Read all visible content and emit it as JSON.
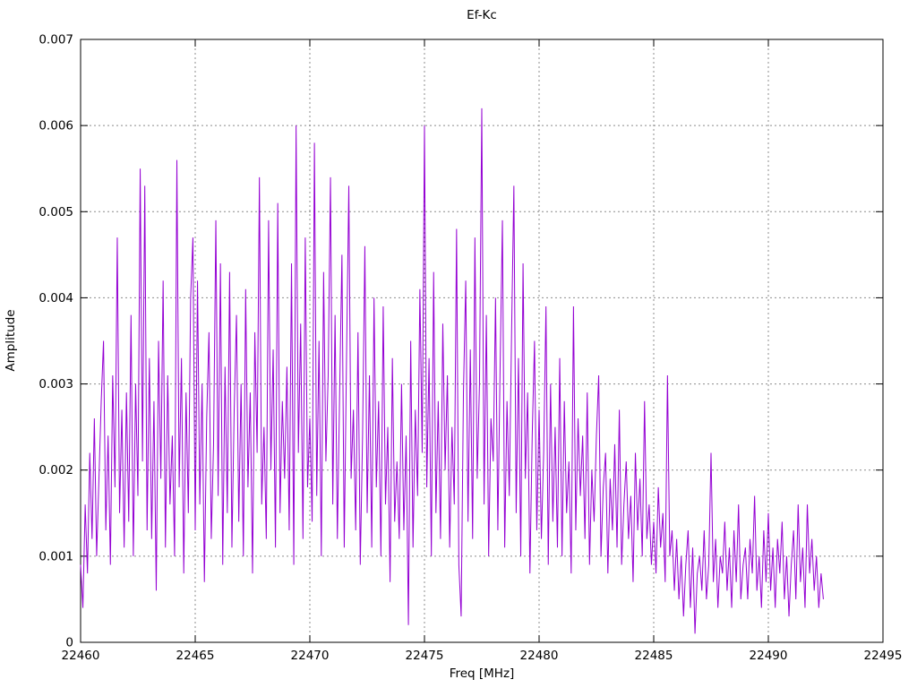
{
  "title": "Ef-Kc",
  "axes": {
    "x_label": "Freq [MHz]",
    "y_label": "Amplitude"
  },
  "colors": {
    "line": "#9400d3",
    "grid": "#8c8c8c",
    "border": "#000000",
    "text": "#000000",
    "background": "#ffffff"
  },
  "chart_data": {
    "type": "line",
    "title": "Ef-Kc",
    "xlabel": "Freq [MHz]",
    "ylabel": "Amplitude",
    "xlim": [
      22460,
      22495
    ],
    "ylim": [
      0,
      0.007
    ],
    "grid": true,
    "legend": "none",
    "line_color": "#9400d3",
    "x_ticks": [
      {
        "v": 22460,
        "label": "22460"
      },
      {
        "v": 22465,
        "label": "22465"
      },
      {
        "v": 22470,
        "label": "22470"
      },
      {
        "v": 22475,
        "label": "22475"
      },
      {
        "v": 22480,
        "label": "22480"
      },
      {
        "v": 22485,
        "label": "22485"
      },
      {
        "v": 22490,
        "label": "22490"
      },
      {
        "v": 22495,
        "label": "22495"
      }
    ],
    "y_ticks": [
      {
        "v": 0,
        "label": "0"
      },
      {
        "v": 0.001,
        "label": "0.001"
      },
      {
        "v": 0.002,
        "label": "0.002"
      },
      {
        "v": 0.003,
        "label": "0.003"
      },
      {
        "v": 0.004,
        "label": "0.004"
      },
      {
        "v": 0.005,
        "label": "0.005"
      },
      {
        "v": 0.006,
        "label": "0.006"
      },
      {
        "v": 0.007,
        "label": "0.007"
      }
    ],
    "x_start": 22460.0,
    "x_step": 0.1,
    "values": [
      0.0009,
      0.0004,
      0.0016,
      0.0008,
      0.0022,
      0.0012,
      0.0026,
      0.001,
      0.0019,
      0.0028,
      0.0035,
      0.0013,
      0.0024,
      0.0009,
      0.0031,
      0.0018,
      0.0047,
      0.0015,
      0.0027,
      0.0011,
      0.0029,
      0.0014,
      0.0038,
      0.001,
      0.003,
      0.0017,
      0.0055,
      0.0021,
      0.0053,
      0.0013,
      0.0033,
      0.0012,
      0.0028,
      0.0006,
      0.0035,
      0.0019,
      0.0042,
      0.0011,
      0.0031,
      0.0016,
      0.0024,
      0.001,
      0.0056,
      0.0018,
      0.0033,
      0.0008,
      0.0029,
      0.0015,
      0.004,
      0.0047,
      0.0013,
      0.0042,
      0.0016,
      0.003,
      0.0007,
      0.0026,
      0.0036,
      0.0012,
      0.0023,
      0.0049,
      0.0017,
      0.0044,
      0.0009,
      0.0032,
      0.0015,
      0.0043,
      0.0011,
      0.0027,
      0.0038,
      0.0014,
      0.003,
      0.001,
      0.0041,
      0.0018,
      0.0029,
      0.0008,
      0.0036,
      0.0022,
      0.0054,
      0.0016,
      0.0025,
      0.0012,
      0.0049,
      0.002,
      0.0034,
      0.0011,
      0.0051,
      0.0015,
      0.0028,
      0.0019,
      0.0032,
      0.0013,
      0.0044,
      0.0009,
      0.006,
      0.0022,
      0.0037,
      0.0012,
      0.0047,
      0.0018,
      0.0026,
      0.0014,
      0.0058,
      0.0017,
      0.0035,
      0.001,
      0.0043,
      0.0021,
      0.0031,
      0.0054,
      0.0016,
      0.0038,
      0.0012,
      0.0029,
      0.0045,
      0.0011,
      0.0033,
      0.0053,
      0.0019,
      0.0027,
      0.0013,
      0.0036,
      0.0009,
      0.0024,
      0.0046,
      0.0015,
      0.0031,
      0.0011,
      0.004,
      0.0018,
      0.0028,
      0.001,
      0.0039,
      0.0016,
      0.0025,
      0.0007,
      0.0033,
      0.0014,
      0.0021,
      0.0012,
      0.003,
      0.0013,
      0.0024,
      0.0002,
      0.0035,
      0.0011,
      0.0027,
      0.0017,
      0.0041,
      0.0022,
      0.006,
      0.0018,
      0.0033,
      0.001,
      0.0043,
      0.0015,
      0.0028,
      0.0012,
      0.0037,
      0.002,
      0.0031,
      0.0011,
      0.0025,
      0.0016,
      0.0048,
      0.0009,
      0.0003,
      0.0029,
      0.0042,
      0.0014,
      0.0034,
      0.0012,
      0.0047,
      0.0019,
      0.003,
      0.0062,
      0.0016,
      0.0038,
      0.001,
      0.0026,
      0.0021,
      0.004,
      0.0013,
      0.0032,
      0.0049,
      0.0011,
      0.0028,
      0.0017,
      0.0036,
      0.0053,
      0.0015,
      0.0033,
      0.001,
      0.0044,
      0.0019,
      0.0029,
      0.0008,
      0.0024,
      0.0035,
      0.0013,
      0.0027,
      0.0012,
      0.0022,
      0.0039,
      0.0009,
      0.003,
      0.0014,
      0.0025,
      0.0011,
      0.0033,
      0.001,
      0.0028,
      0.0015,
      0.0021,
      0.0008,
      0.0039,
      0.0013,
      0.0026,
      0.0017,
      0.0024,
      0.0012,
      0.0029,
      0.0009,
      0.002,
      0.0014,
      0.0024,
      0.0031,
      0.001,
      0.0018,
      0.0022,
      0.0008,
      0.0019,
      0.0013,
      0.0023,
      0.0011,
      0.0027,
      0.0009,
      0.0016,
      0.0021,
      0.0012,
      0.0017,
      0.0007,
      0.0022,
      0.0013,
      0.0019,
      0.001,
      0.0028,
      0.0012,
      0.0016,
      0.0009,
      0.0014,
      0.0008,
      0.0018,
      0.0011,
      0.0015,
      0.0007,
      0.0031,
      0.001,
      0.0013,
      0.0006,
      0.0012,
      0.0005,
      0.001,
      0.0003,
      0.0009,
      0.0013,
      0.0004,
      0.0011,
      0.0001,
      0.0008,
      0.001,
      0.0006,
      0.0013,
      0.0005,
      0.0009,
      0.0022,
      0.0007,
      0.0012,
      0.0004,
      0.001,
      0.0008,
      0.0014,
      0.0006,
      0.0011,
      0.0004,
      0.0013,
      0.0007,
      0.0016,
      0.0005,
      0.0009,
      0.0011,
      0.0005,
      0.0012,
      0.0008,
      0.0017,
      0.0006,
      0.001,
      0.0004,
      0.0013,
      0.0007,
      0.0015,
      0.0006,
      0.0011,
      0.0004,
      0.0012,
      0.0008,
      0.0014,
      0.0005,
      0.001,
      0.0003,
      0.0009,
      0.0013,
      0.0005,
      0.0016,
      0.0007,
      0.0011,
      0.0004,
      0.0016,
      0.0008,
      0.0012,
      0.0006,
      0.001,
      0.0004,
      0.0008,
      0.0005
    ]
  }
}
